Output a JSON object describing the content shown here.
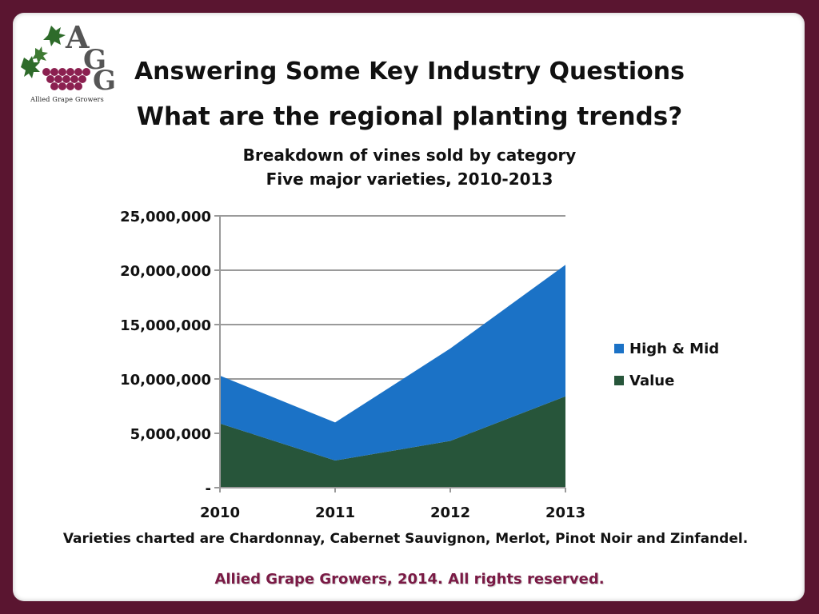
{
  "logo": {
    "caption": "Allied Grape Growers",
    "letters": "AGG"
  },
  "header": {
    "title": "Answering Some Key Industry Questions",
    "subtitle": "What are the regional planting trends?"
  },
  "chart_data": {
    "type": "area",
    "stacked": true,
    "title": "Breakdown of vines sold by category",
    "subtitle": "Five major varieties, 2010-2013",
    "categories": [
      "2010",
      "2011",
      "2012",
      "2013"
    ],
    "series": [
      {
        "name": "Value",
        "values": [
          5900000,
          2500000,
          4300000,
          8400000
        ],
        "color": "#27553a"
      },
      {
        "name": "High & Mid",
        "values": [
          4400000,
          3500000,
          8500000,
          12100000
        ],
        "color": "#1b72c6"
      }
    ],
    "ylim": [
      0,
      25000000
    ],
    "y_ticks": [
      "-",
      "5,000,000",
      "10,000,000",
      "15,000,000",
      "20,000,000",
      "25,000,000"
    ],
    "grid": true,
    "legend_position": "right"
  },
  "footnote": "Varieties charted are Chardonnay, Cabernet Sauvignon, Merlot, Pinot Noir and Zinfandel.",
  "copyright": "Allied Grape Growers, 2014.  All rights reserved."
}
